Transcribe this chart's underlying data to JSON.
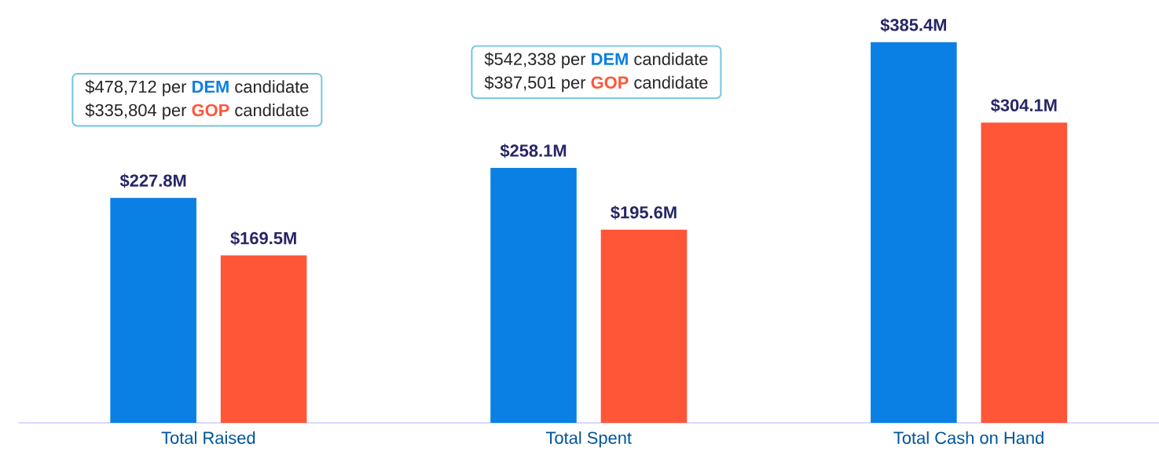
{
  "chart_data": {
    "type": "bar",
    "categories": [
      "Total Raised",
      "Total Spent",
      "Total Cash on Hand"
    ],
    "series": [
      {
        "color": "#0a80e4",
        "values": [
          227.8,
          258.1,
          385.4
        ],
        "value_labels": [
          "$227.8M",
          "$258.1M",
          "$385.4M"
        ]
      },
      {
        "color": "#ff5638",
        "values": [
          169.5,
          195.6,
          304.1
        ],
        "value_labels": [
          "$169.5M",
          "$195.6M",
          "$304.1M"
        ]
      }
    ],
    "annotations": [
      "$478,712 per **DEM** candidate",
      "$335,804 per **GOP** candidate",
      "$542,338 per **DEM** candidate",
      "$387,501 per **GOP** candidate"
    ]
  }
}
